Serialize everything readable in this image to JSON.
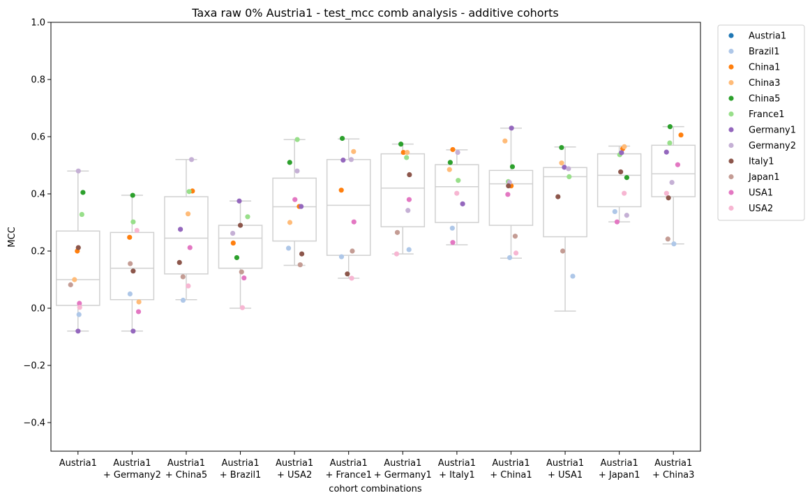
{
  "chart_data": {
    "type": "box+strip",
    "title": "Taxa raw 0% Austria1 - test_mcc comb analysis - additive cohorts",
    "xlabel": "cohort combinations",
    "ylabel": "MCC",
    "ylim": [
      -0.5,
      1.0
    ],
    "yticks": [
      -0.4,
      -0.2,
      0.0,
      0.2,
      0.4,
      0.6,
      0.8,
      1.0
    ],
    "ytick_labels": [
      "−0.4",
      "−0.2",
      "0.0",
      "0.2",
      "0.4",
      "0.6",
      "0.8",
      "1.0"
    ],
    "legend_position": "outside-right",
    "categories": [
      [
        "Austria1"
      ],
      [
        "Austria1",
        "+ Germany2"
      ],
      [
        "Austria1",
        "+ China5"
      ],
      [
        "Austria1",
        "+ Brazil1"
      ],
      [
        "Austria1",
        "+ USA2"
      ],
      [
        "Austria1",
        "+ France1"
      ],
      [
        "Austria1",
        "+ Germany1"
      ],
      [
        "Austria1",
        "+ Italy1"
      ],
      [
        "Austria1",
        "+ China1"
      ],
      [
        "Austria1",
        "+ USA1"
      ],
      [
        "Austria1",
        "+ Japan1"
      ],
      [
        "Austria1",
        "+ China3"
      ]
    ],
    "boxes": [
      {
        "whislo": -0.08,
        "q1": 0.01,
        "med": 0.1,
        "q3": 0.27,
        "whishi": 0.48
      },
      {
        "whislo": -0.08,
        "q1": 0.03,
        "med": 0.14,
        "q3": 0.265,
        "whishi": 0.395
      },
      {
        "whislo": 0.03,
        "q1": 0.12,
        "med": 0.245,
        "q3": 0.39,
        "whishi": 0.52
      },
      {
        "whislo": 0.0,
        "q1": 0.14,
        "med": 0.245,
        "q3": 0.29,
        "whishi": 0.375
      },
      {
        "whislo": 0.15,
        "q1": 0.235,
        "med": 0.355,
        "q3": 0.455,
        "whishi": 0.59
      },
      {
        "whislo": 0.105,
        "q1": 0.185,
        "med": 0.36,
        "q3": 0.52,
        "whishi": 0.592
      },
      {
        "whislo": 0.19,
        "q1": 0.285,
        "med": 0.42,
        "q3": 0.54,
        "whishi": 0.574
      },
      {
        "whislo": 0.222,
        "q1": 0.3,
        "med": 0.425,
        "q3": 0.502,
        "whishi": 0.554
      },
      {
        "whislo": 0.175,
        "q1": 0.29,
        "med": 0.435,
        "q3": 0.482,
        "whishi": 0.63
      },
      {
        "whislo": -0.01,
        "q1": 0.25,
        "med": 0.46,
        "q3": 0.492,
        "whishi": 0.564
      },
      {
        "whislo": 0.302,
        "q1": 0.355,
        "med": 0.465,
        "q3": 0.54,
        "whishi": 0.567
      },
      {
        "whislo": 0.225,
        "q1": 0.39,
        "med": 0.47,
        "q3": 0.57,
        "whishi": 0.635
      }
    ],
    "series": [
      {
        "name": "Austria1",
        "color": "#1f77b4",
        "values": [
          null,
          null,
          null,
          null,
          null,
          null,
          null,
          null,
          null,
          null,
          null,
          null
        ]
      },
      {
        "name": "Brazil1",
        "color": "#aec7e8",
        "values": [
          -0.022,
          0.05,
          0.028,
          null,
          0.21,
          0.18,
          0.205,
          0.28,
          0.177,
          0.112,
          0.338,
          0.225
        ]
      },
      {
        "name": "China1",
        "color": "#ff7f0e",
        "values": [
          0.2,
          0.248,
          0.41,
          0.228,
          0.356,
          0.413,
          0.545,
          0.555,
          0.428,
          null,
          0.558,
          0.606
        ]
      },
      {
        "name": "China3",
        "color": "#ffbb78",
        "values": [
          0.1,
          0.022,
          0.33,
          null,
          0.3,
          0.548,
          0.545,
          0.485,
          0.585,
          0.508,
          0.565,
          null
        ]
      },
      {
        "name": "China5",
        "color": "#2ca02c",
        "values": [
          0.405,
          0.395,
          null,
          0.177,
          0.51,
          0.594,
          0.574,
          0.51,
          0.495,
          0.562,
          0.457,
          0.635
        ]
      },
      {
        "name": "France1",
        "color": "#98df8a",
        "values": [
          0.328,
          0.302,
          0.408,
          0.32,
          0.59,
          null,
          0.527,
          0.447,
          0.443,
          0.46,
          0.537,
          0.578
        ]
      },
      {
        "name": "Germany1",
        "color": "#9467bd",
        "values": [
          -0.08,
          -0.08,
          0.276,
          0.375,
          0.356,
          0.518,
          null,
          0.365,
          0.63,
          0.493,
          0.544,
          0.546
        ]
      },
      {
        "name": "Germany2",
        "color": "#c5b0d5",
        "values": [
          0.48,
          null,
          0.52,
          0.262,
          0.48,
          0.52,
          0.342,
          0.545,
          0.44,
          0.488,
          0.325,
          0.44
        ]
      },
      {
        "name": "Italy1",
        "color": "#8c564b",
        "values": [
          0.212,
          0.13,
          0.16,
          0.29,
          0.19,
          0.12,
          0.467,
          null,
          0.428,
          0.39,
          0.477,
          0.386
        ]
      },
      {
        "name": "Japan1",
        "color": "#c49c94",
        "values": [
          0.082,
          0.156,
          0.11,
          0.127,
          0.152,
          0.2,
          0.265,
          null,
          0.252,
          0.2,
          null,
          0.242
        ]
      },
      {
        "name": "USA1",
        "color": "#e377c2",
        "values": [
          0.017,
          -0.012,
          0.212,
          0.106,
          0.38,
          0.302,
          0.38,
          0.23,
          0.398,
          null,
          0.302,
          0.502
        ]
      },
      {
        "name": "USA2",
        "color": "#f7b6d2",
        "values": [
          0.003,
          0.272,
          0.078,
          0.002,
          null,
          0.105,
          0.19,
          0.402,
          0.193,
          null,
          0.402,
          0.402
        ]
      }
    ]
  }
}
